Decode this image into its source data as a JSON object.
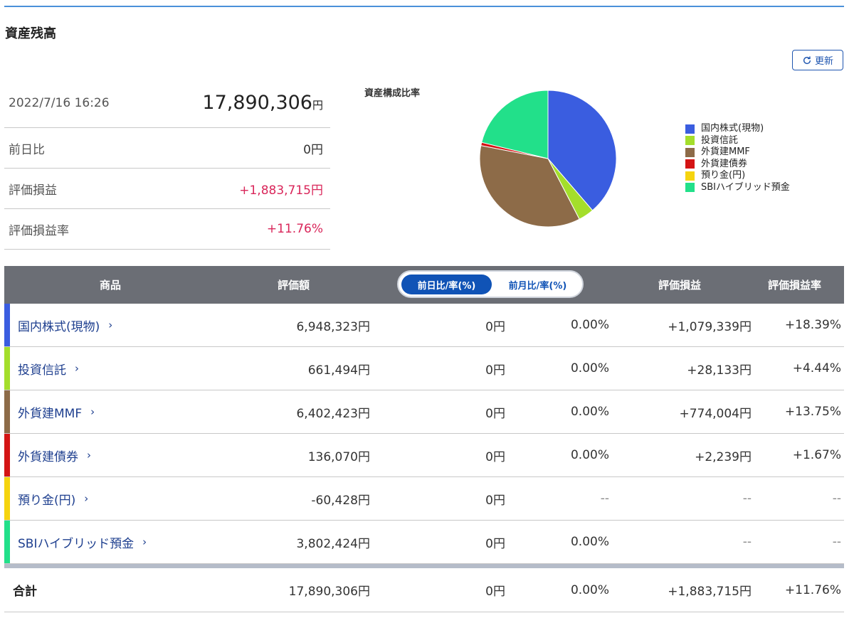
{
  "page": {
    "title": "資産残高",
    "refresh_label": "更新"
  },
  "summary": {
    "datetime": "2022/7/16 16:26",
    "total": "17,890,306",
    "yen": "円",
    "rows": [
      {
        "label": "前日比",
        "value": "0円"
      },
      {
        "label": "評価損益",
        "value": "+1,883,715円"
      },
      {
        "label": "評価損益率",
        "value": "+11.76%"
      }
    ]
  },
  "chart_data": {
    "type": "pie",
    "title": "資産構成比率",
    "labels": [
      "国内株式(現物)",
      "投資信託",
      "外貨建MMF",
      "外貨建債券",
      "預り金(円)",
      "SBIハイブリッド預金"
    ],
    "values": [
      6948323,
      661494,
      6402423,
      136070,
      0,
      3802424
    ],
    "colors": [
      "#3a5de0",
      "#a4de2b",
      "#8d6b48",
      "#d41414",
      "#f5d40f",
      "#22e08a"
    ],
    "legend_position": "right"
  },
  "table": {
    "headers": {
      "product": "商品",
      "valuation": "評価額",
      "toggle_on": "前日比/率(%)",
      "toggle_off": "前月比/率(%)",
      "pl": "評価損益",
      "pl_rate": "評価損益率"
    },
    "rows": [
      {
        "name": "国内株式(現物)",
        "color": "#3a5de0",
        "valuation": "6,948,323円",
        "diff": "0円",
        "diff_rate": "0.00%",
        "pl": "+1,079,339円",
        "pl_rate": "+18.39%"
      },
      {
        "name": "投資信託",
        "color": "#a4de2b",
        "valuation": "661,494円",
        "diff": "0円",
        "diff_rate": "0.00%",
        "pl": "+28,133円",
        "pl_rate": "+4.44%"
      },
      {
        "name": "外貨建MMF",
        "color": "#8d6b48",
        "valuation": "6,402,423円",
        "diff": "0円",
        "diff_rate": "0.00%",
        "pl": "+774,004円",
        "pl_rate": "+13.75%"
      },
      {
        "name": "外貨建債券",
        "color": "#d41414",
        "valuation": "136,070円",
        "diff": "0円",
        "diff_rate": "0.00%",
        "pl": "+2,239円",
        "pl_rate": "+1.67%"
      },
      {
        "name": "預り金(円)",
        "color": "#f5d40f",
        "valuation": "-60,428円",
        "diff": "0円",
        "diff_rate": "--",
        "pl": "--",
        "pl_rate": "--"
      },
      {
        "name": "SBIハイブリッド預金",
        "color": "#22e08a",
        "valuation": "3,802,424円",
        "diff": "0円",
        "diff_rate": "0.00%",
        "pl": "--",
        "pl_rate": "--"
      }
    ],
    "chevron": "›",
    "total": {
      "label": "合計",
      "valuation": "17,890,306円",
      "diff": "0円",
      "diff_rate": "0.00%",
      "pl": "+1,883,715円",
      "pl_rate": "+11.76%"
    }
  }
}
